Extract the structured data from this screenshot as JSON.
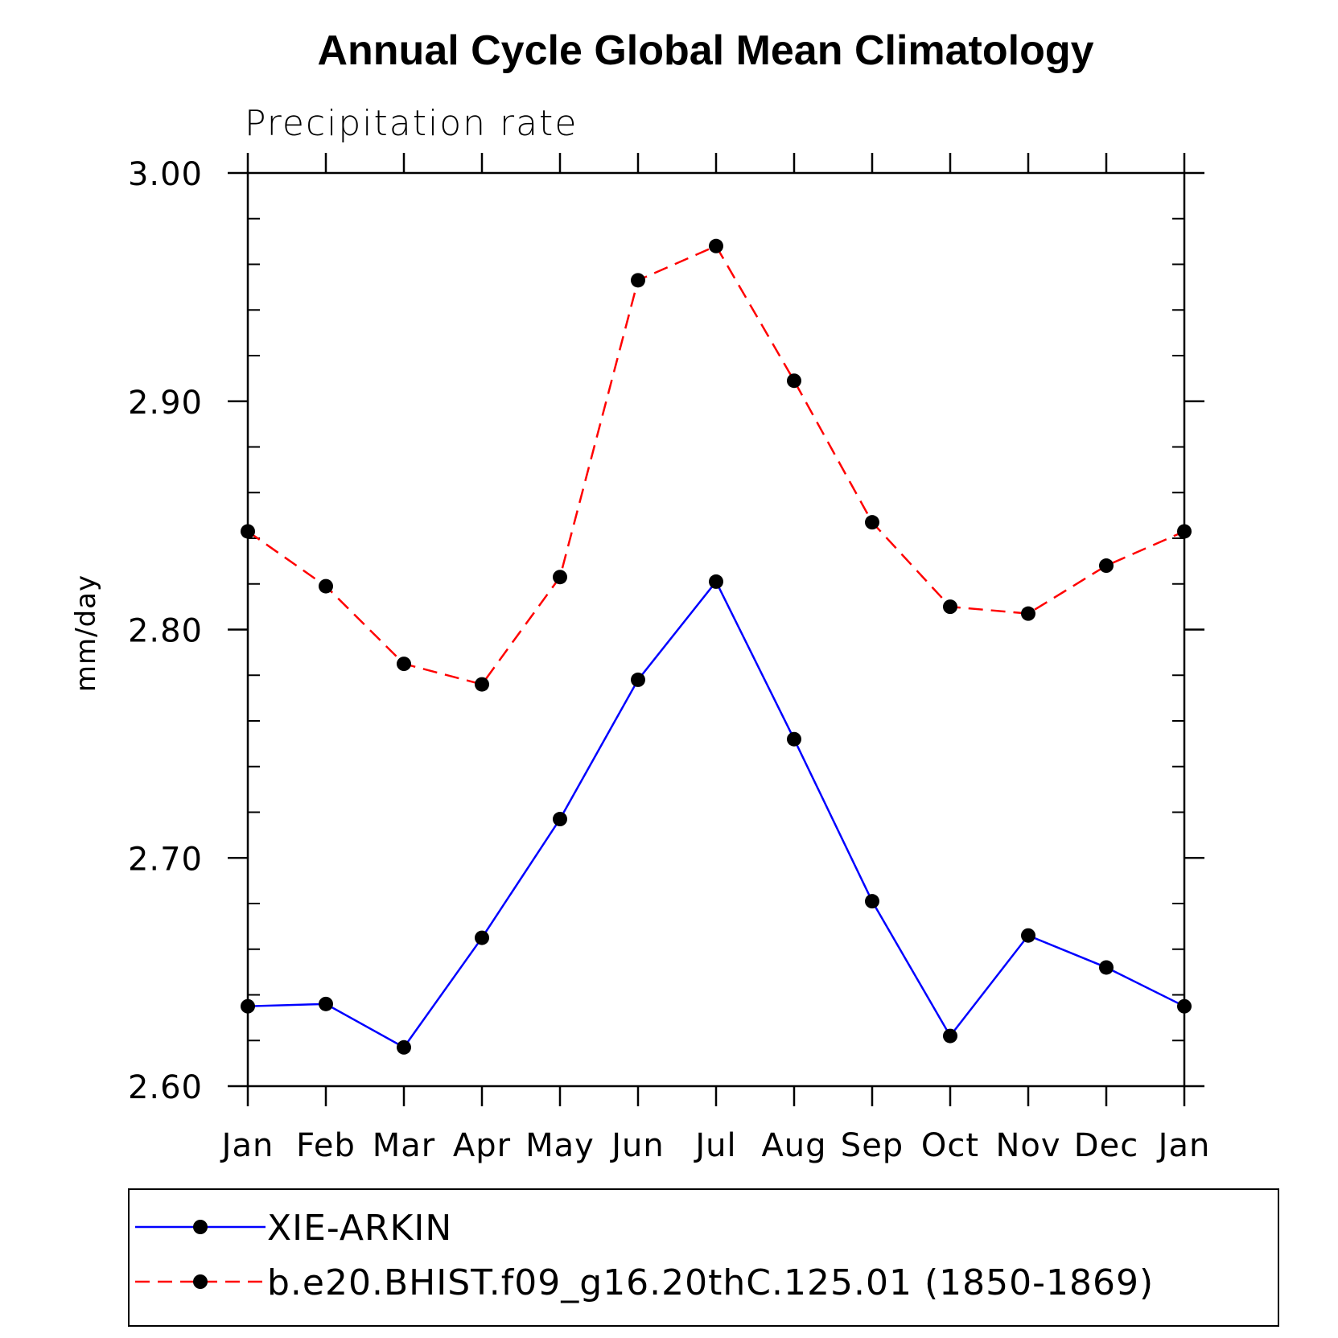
{
  "chart_data": {
    "type": "line",
    "title": "Annual Cycle Global Mean Climatology",
    "subtitle": "Precipitation rate",
    "xlabel": "",
    "ylabel": "mm/day",
    "categories": [
      "Jan",
      "Feb",
      "Mar",
      "Apr",
      "May",
      "Jun",
      "Jul",
      "Aug",
      "Sep",
      "Oct",
      "Nov",
      "Dec",
      "Jan"
    ],
    "ylim": [
      2.6,
      3.0
    ],
    "yticks": [
      2.6,
      2.7,
      2.8,
      2.9,
      3.0
    ],
    "ytick_labels": [
      "2.60",
      "2.70",
      "2.80",
      "2.90",
      "3.00"
    ],
    "y_minor_step": 0.02,
    "series": [
      {
        "name": "XIE-ARKIN",
        "color": "#0000ff",
        "line_style": "solid",
        "marker": "circle",
        "values": [
          2.635,
          2.636,
          2.617,
          2.665,
          2.717,
          2.778,
          2.821,
          2.752,
          2.681,
          2.622,
          2.666,
          2.652,
          2.635
        ]
      },
      {
        "name": "b.e20.BHIST.f09_g16.20thC.125.01 (1850-1869)",
        "color": "#ff0000",
        "line_style": "dashed",
        "marker": "circle",
        "values": [
          2.843,
          2.819,
          2.785,
          2.776,
          2.823,
          2.953,
          2.968,
          2.909,
          2.847,
          2.81,
          2.807,
          2.828,
          2.843
        ]
      }
    ],
    "legend_position": "bottom",
    "grid": false
  }
}
